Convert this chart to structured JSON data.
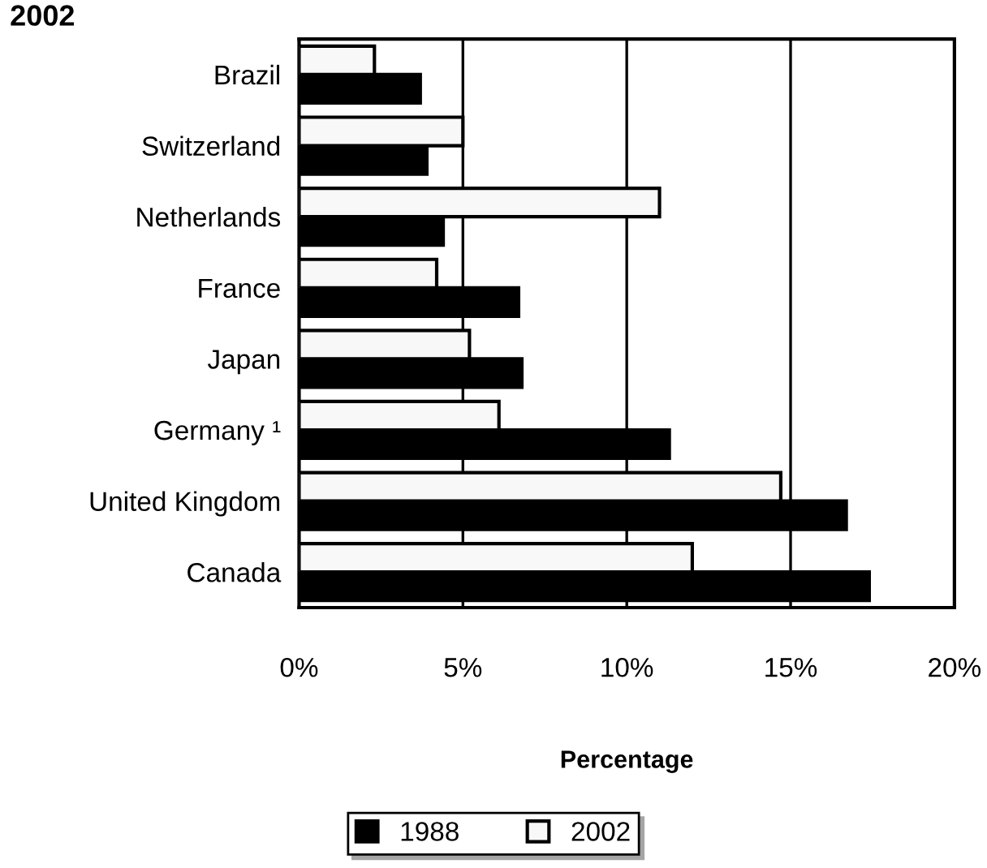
{
  "chart_data": {
    "type": "bar",
    "orientation": "horizontal",
    "title": "2002",
    "xlabel": "Percentage",
    "categories": [
      "Brazil",
      "Switzerland",
      "Netherlands",
      "France",
      "Japan",
      "Germany ¹",
      "United Kingdom",
      "Canada"
    ],
    "series": [
      {
        "name": "1988",
        "color": "#000000",
        "values": [
          3.7,
          3.9,
          4.4,
          6.7,
          6.8,
          11.3,
          16.7,
          17.4
        ]
      },
      {
        "name": "2002",
        "color": "#f8f8f8",
        "values": [
          2.3,
          5.0,
          11.0,
          4.2,
          5.2,
          6.1,
          14.7,
          12.0
        ]
      }
    ],
    "xlim": [
      0,
      20
    ],
    "xticks": [
      {
        "value": 0,
        "label": "0%"
      },
      {
        "value": 5,
        "label": "5%"
      },
      {
        "value": 10,
        "label": "10%"
      },
      {
        "value": 15,
        "label": "15%"
      },
      {
        "value": 20,
        "label": "20%"
      }
    ],
    "grid": "x",
    "legend": "bottom"
  }
}
